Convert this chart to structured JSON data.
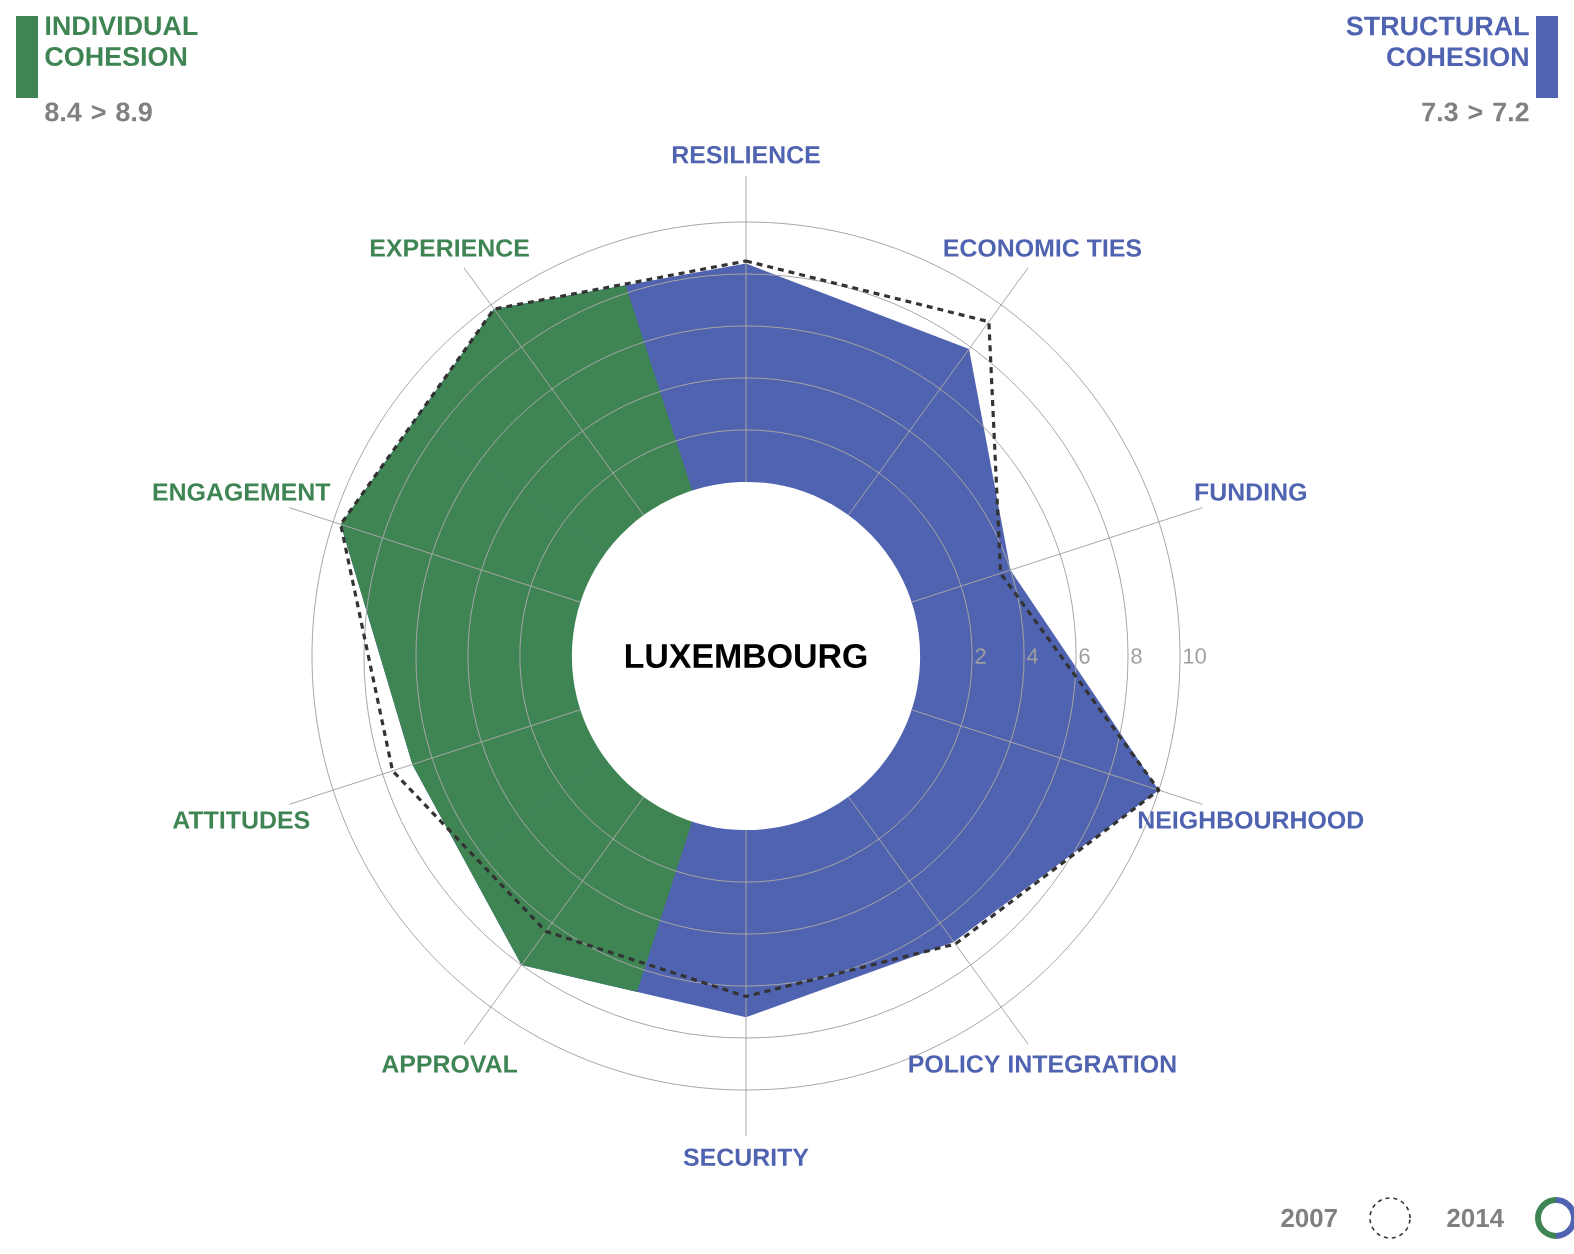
{
  "chart_data": {
    "type": "radar",
    "title": "LUXEMBOURG",
    "categories": [
      "RESILIENCE",
      "ECONOMIC TIES",
      "FUNDING",
      "NEIGHBOURHOOD",
      "POLICY INTEGRATION",
      "SECURITY",
      "APPROVAL",
      "ATTITUDES",
      "ENGAGEMENT",
      "EXPERIENCE"
    ],
    "ylim": [
      -6.7,
      10
    ],
    "yticks": [
      2,
      4,
      6,
      8,
      10
    ],
    "series": [
      {
        "name": "2007",
        "color": "#333333",
        "line_style": "dashed",
        "values": [
          8.5,
          9.2,
          3.6,
          10,
          7.0,
          6.4,
          6.4,
          7.6,
          9.7,
          9.8
        ]
      },
      {
        "name": "2014",
        "colors": [
          "#4f63b0",
          "#4f63b0",
          "#4f63b0",
          "#4f63b0",
          "#4f63b0",
          "#4f63b0",
          "#3f8554",
          "#3f8554",
          "#3f8554",
          "#3f8554"
        ],
        "values": [
          8.4,
          7.9,
          4.0,
          10,
          6.9,
          7.2,
          8.0,
          6.8,
          9.7,
          9.8
        ]
      }
    ],
    "annotations": [
      "INDIVIDUAL COHESION",
      "8.4 > **8.9**",
      "STRUCTURAL COHESION",
      "7.3 > **7.2**"
    ],
    "legend": "bottom right"
  }
}
